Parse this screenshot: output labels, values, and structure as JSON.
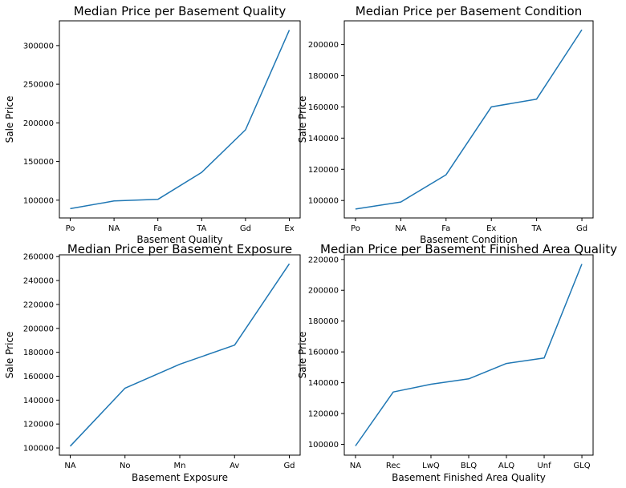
{
  "figure": {
    "background": "#ffffff",
    "line_color": "#1f77b4"
  },
  "chart_data": [
    {
      "type": "line",
      "title": "Median Price per Basement Quality",
      "xlabel": "Basement Quality",
      "ylabel": "Sale Price",
      "categories": [
        "Po",
        "NA",
        "Fa",
        "TA",
        "Gd",
        "Ex"
      ],
      "series": [
        {
          "values": [
            89000,
            99000,
            101000,
            136000,
            191000,
            320000
          ]
        }
      ],
      "yticks": [
        100000,
        150000,
        200000,
        250000,
        300000
      ],
      "ylim": [
        77000,
        332000
      ],
      "grid": false
    },
    {
      "type": "line",
      "title": "Median Price per Basement Condition",
      "xlabel": "Basement Condition",
      "ylabel": "Sale Price",
      "categories": [
        "Po",
        "NA",
        "Fa",
        "Ex",
        "TA",
        "Gd"
      ],
      "series": [
        {
          "values": [
            94500,
            99000,
            116500,
            160000,
            165000,
            209500
          ]
        }
      ],
      "yticks": [
        100000,
        120000,
        140000,
        160000,
        180000,
        200000
      ],
      "ylim": [
        88800,
        215200
      ],
      "grid": false
    },
    {
      "type": "line",
      "title": "Median Price per Basement Exposure",
      "xlabel": "Basement Exposure",
      "ylabel": "Sale Price",
      "categories": [
        "NA",
        "No",
        "Mn",
        "Av",
        "Gd"
      ],
      "series": [
        {
          "values": [
            101500,
            150000,
            170000,
            186000,
            254000
          ]
        }
      ],
      "yticks": [
        100000,
        120000,
        140000,
        160000,
        180000,
        200000,
        220000,
        240000,
        260000
      ],
      "ylim": [
        94000,
        261500
      ],
      "grid": false
    },
    {
      "type": "line",
      "title": "Median Price per Basement Finished Area Quality",
      "xlabel": "Basement Finished Area Quality",
      "ylabel": "Sale Price",
      "categories": [
        "NA",
        "Rec",
        "LwQ",
        "BLQ",
        "ALQ",
        "Unf",
        "GLQ"
      ],
      "series": [
        {
          "values": [
            99000,
            134000,
            139000,
            142500,
            152500,
            156000,
            217000
          ]
        }
      ],
      "yticks": [
        100000,
        120000,
        140000,
        160000,
        180000,
        200000,
        220000
      ],
      "ylim": [
        93000,
        223000
      ],
      "grid": false
    }
  ]
}
